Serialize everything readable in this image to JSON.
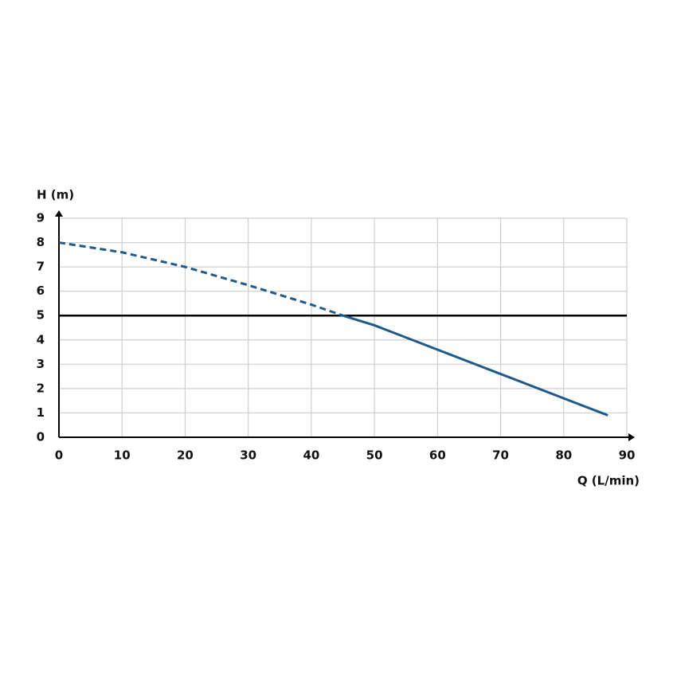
{
  "chart_data": {
    "type": "line",
    "x_label": "Q (L/min)",
    "y_label": "H (m)",
    "xlim": [
      0,
      90
    ],
    "xticks": [
      0,
      10,
      20,
      30,
      40,
      50,
      60,
      70,
      80,
      90
    ],
    "ylim": [
      0,
      9
    ],
    "yticks": [
      0,
      1,
      2,
      3,
      4,
      5,
      6,
      7,
      8,
      9
    ],
    "grid": true,
    "series": [
      {
        "color": "#1f5a8c",
        "dashed": true,
        "x": [
          0,
          10,
          20,
          30,
          40,
          45
        ],
        "values": [
          8,
          7.6,
          7.0,
          6.25,
          5.45,
          5.0
        ]
      },
      {
        "color": "#1f5a8c",
        "dashed": false,
        "x": [
          45,
          50,
          60,
          70,
          80,
          87
        ],
        "values": [
          5.0,
          4.6,
          3.6,
          2.6,
          1.6,
          0.9
        ]
      }
    ],
    "hline": {
      "value": 5,
      "color": "#000000"
    }
  }
}
